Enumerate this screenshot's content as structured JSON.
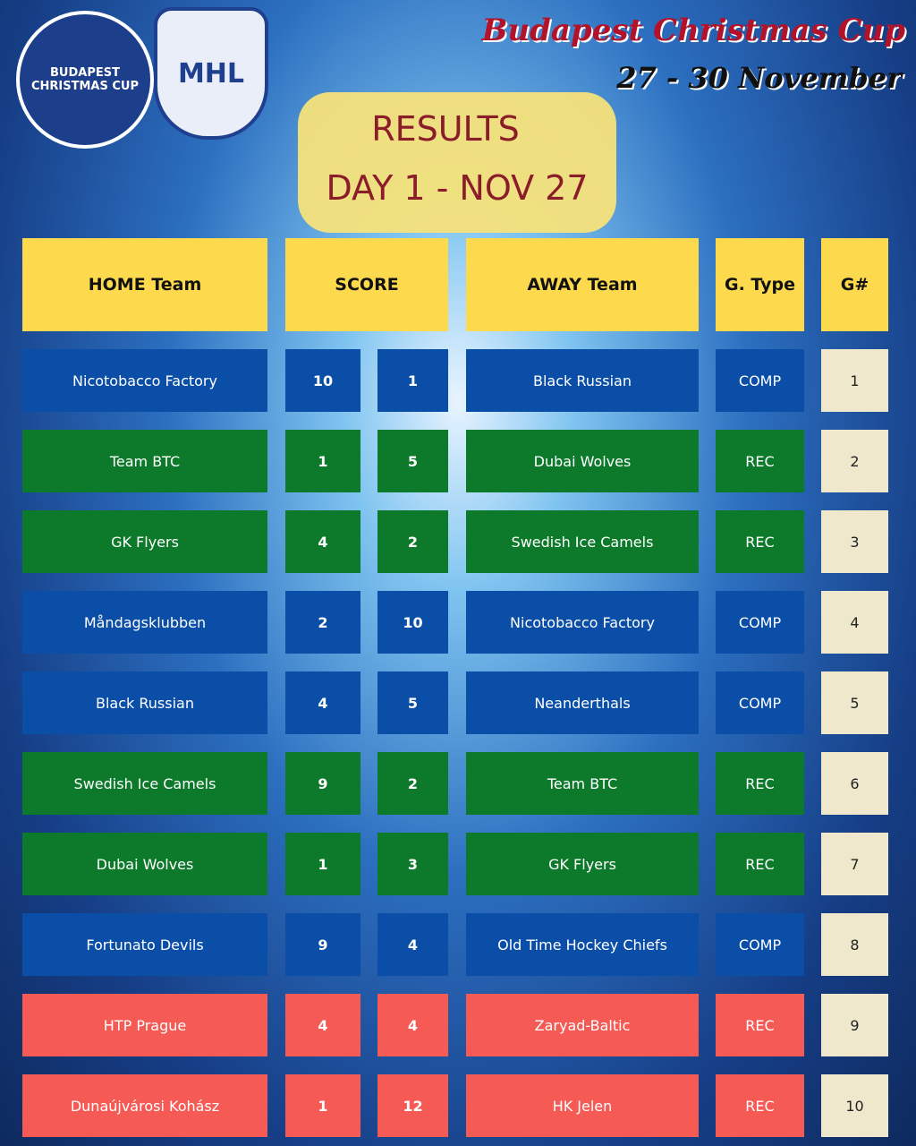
{
  "header": {
    "title": "Budapest Christmas Cup",
    "dates": "27 - 30 November"
  },
  "logos": [
    "BUDAPEST CHRISTMAS CUP",
    "MHL"
  ],
  "banner": {
    "title": "RESULTS",
    "subtitle": "DAY 1 - NOV 27"
  },
  "table": {
    "headers": [
      "HOME Team",
      "SCORE",
      "AWAY Team",
      "G. Type",
      "G#"
    ],
    "rows": [
      {
        "home": "Nicotobacco Factory",
        "home_score": 10,
        "away_score": 1,
        "away": "Black Russian",
        "type": "COMP",
        "game": 1,
        "color": "#0b4ea8"
      },
      {
        "home": "Team BTC",
        "home_score": 1,
        "away_score": 5,
        "away": "Dubai Wolves",
        "type": "REC",
        "game": 2,
        "color": "#0d7a2b"
      },
      {
        "home": "GK Flyers",
        "home_score": 4,
        "away_score": 2,
        "away": "Swedish Ice Camels",
        "type": "REC",
        "game": 3,
        "color": "#0d7a2b"
      },
      {
        "home": "Måndagsklubben",
        "home_score": 2,
        "away_score": 10,
        "away": "Nicotobacco Factory",
        "type": "COMP",
        "game": 4,
        "color": "#0b4ea8"
      },
      {
        "home": "Black Russian",
        "home_score": 4,
        "away_score": 5,
        "away": "Neanderthals",
        "type": "COMP",
        "game": 5,
        "color": "#0b4ea8"
      },
      {
        "home": "Swedish Ice Camels",
        "home_score": 9,
        "away_score": 2,
        "away": "Team BTC",
        "type": "REC",
        "game": 6,
        "color": "#0d7a2b"
      },
      {
        "home": "Dubai Wolves",
        "home_score": 1,
        "away_score": 3,
        "away": "GK Flyers",
        "type": "REC",
        "game": 7,
        "color": "#0d7a2b"
      },
      {
        "home": "Fortunato Devils",
        "home_score": 9,
        "away_score": 4,
        "away": "Old Time Hockey Chiefs",
        "type": "COMP",
        "game": 8,
        "color": "#0b4ea8"
      },
      {
        "home": "HTP Prague",
        "home_score": 4,
        "away_score": 4,
        "away": "Zaryad-Baltic",
        "type": "REC",
        "game": 9,
        "color": "#f55a55"
      },
      {
        "home": "Dunaújvárosi Kohász",
        "home_score": 1,
        "away_score": 12,
        "away": "HK Jelen",
        "type": "REC",
        "game": 10,
        "color": "#f55a55"
      }
    ]
  }
}
